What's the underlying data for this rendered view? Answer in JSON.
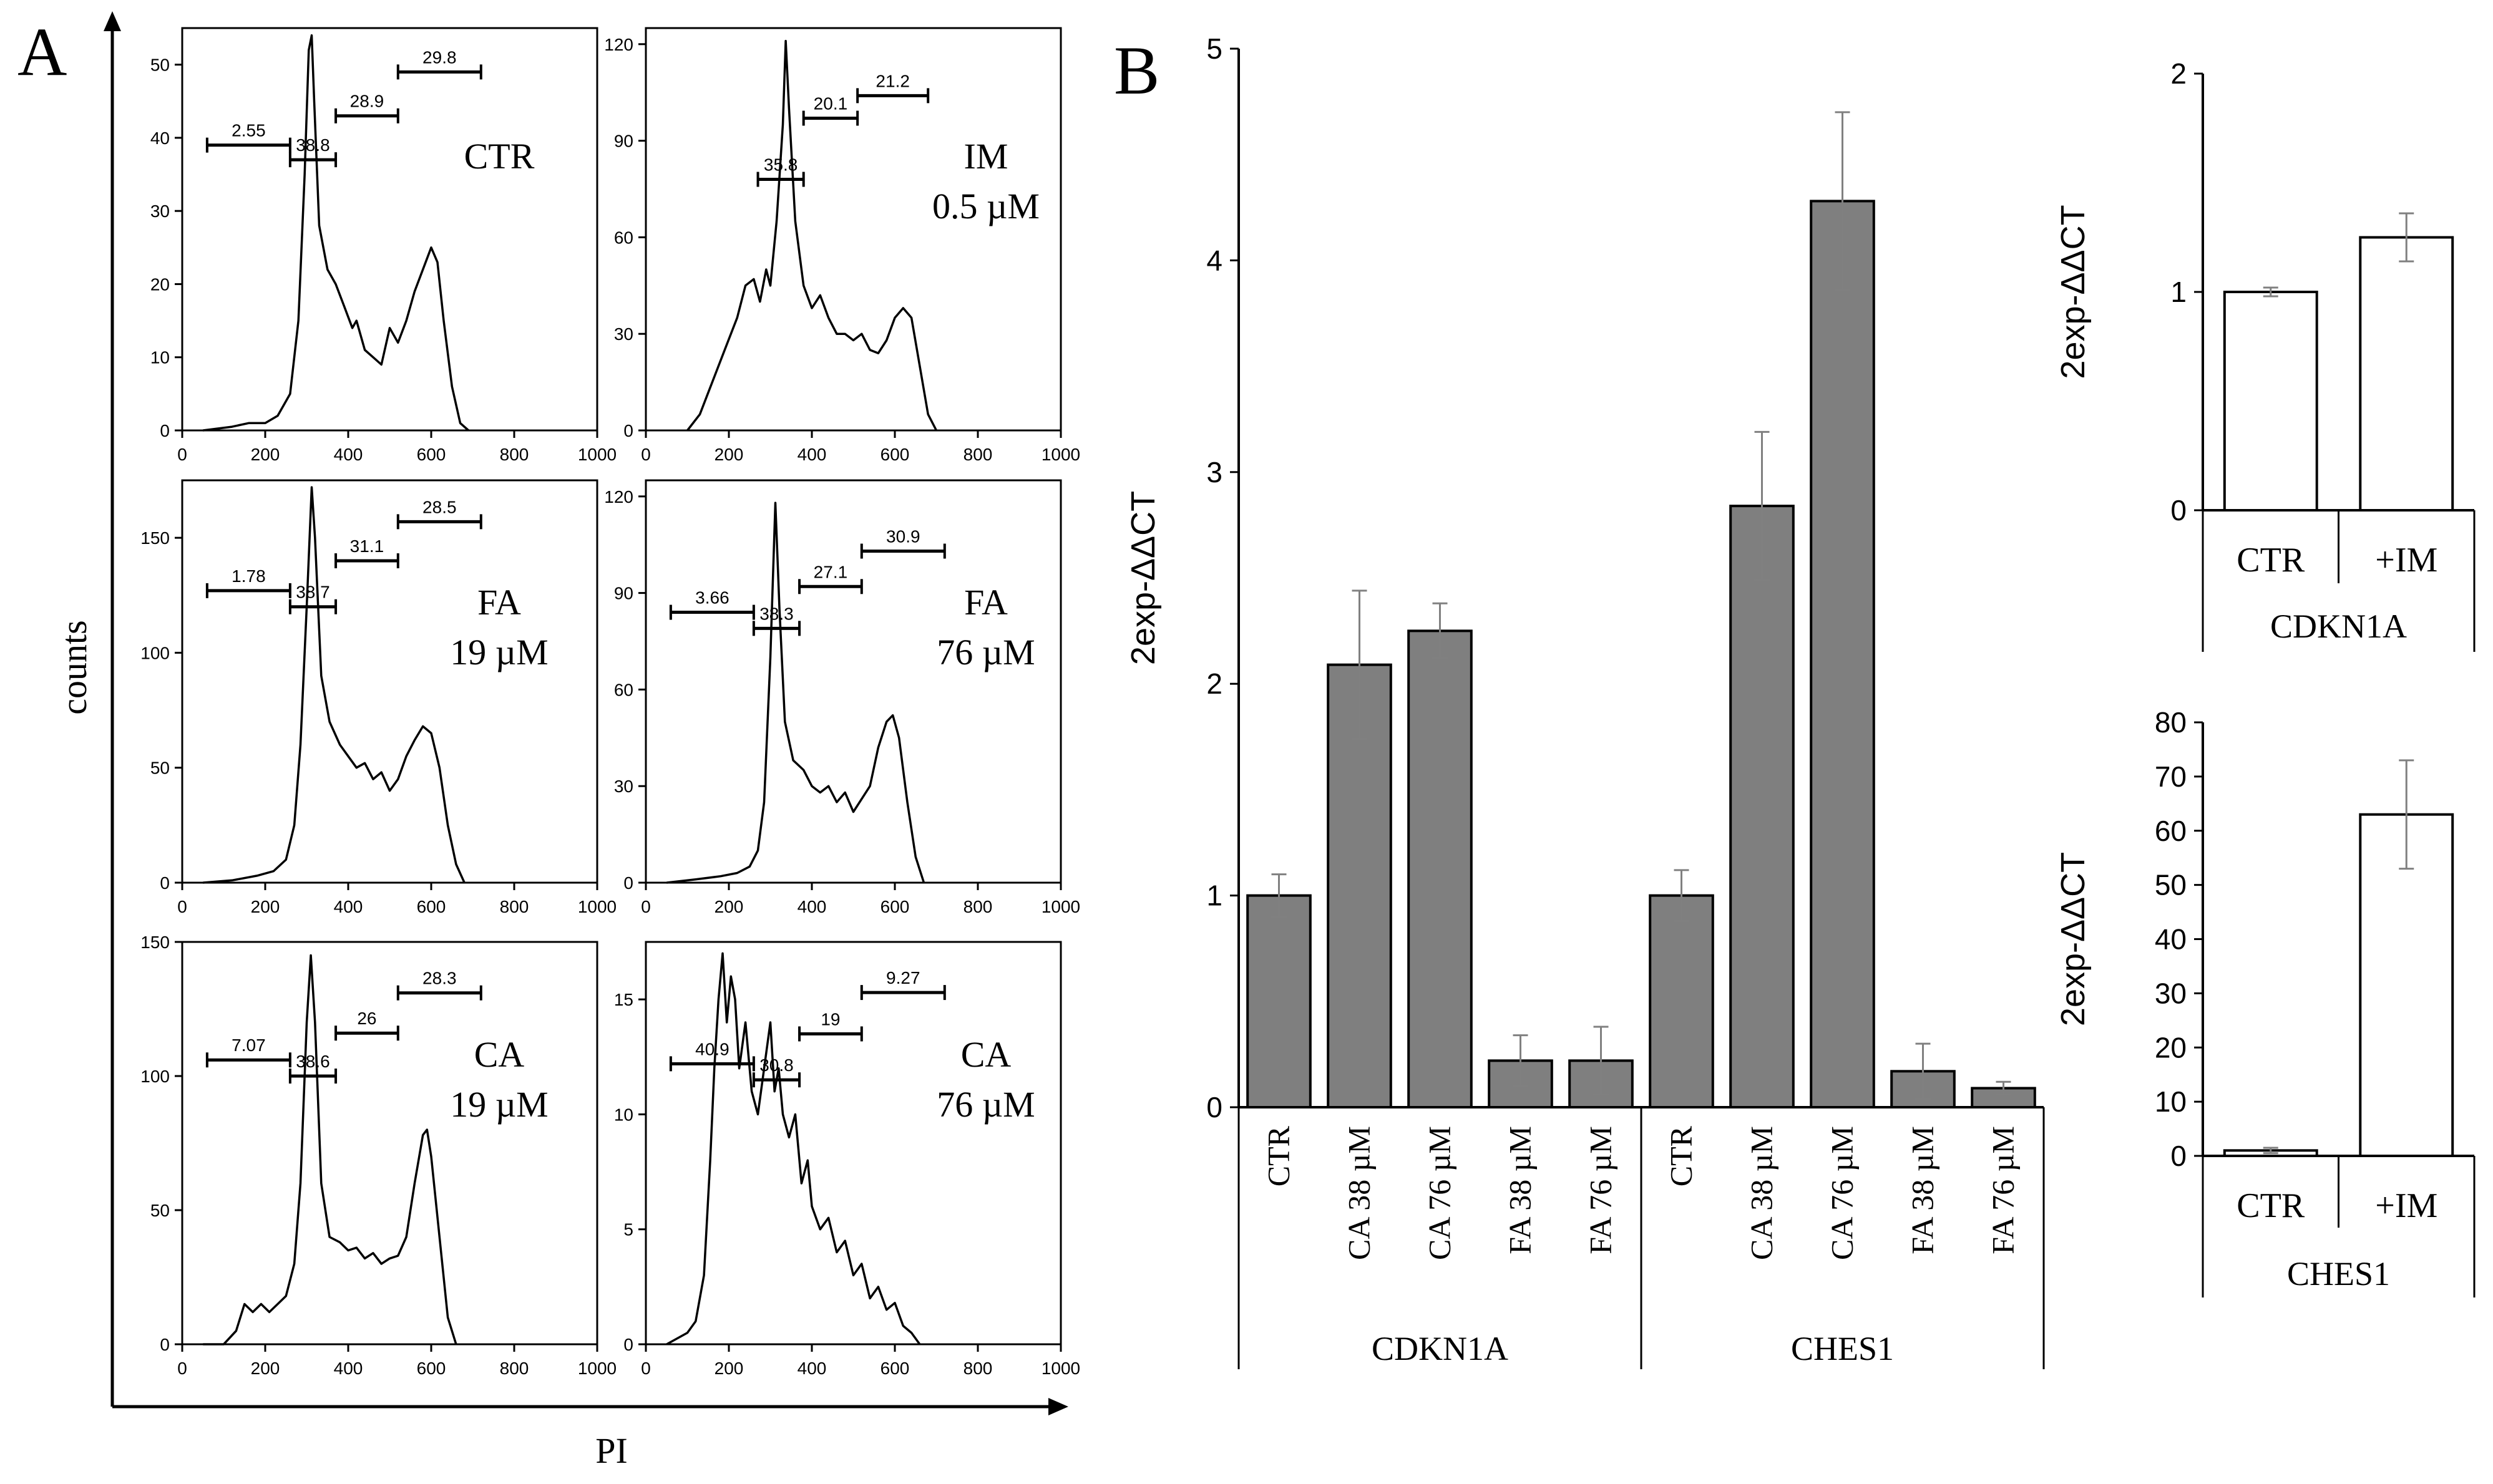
{
  "panel_labels": {
    "a": "A",
    "b": "B"
  },
  "histograms": {
    "shared_xlabel": "PI",
    "shared_ylabel": "counts",
    "x_ticks": [
      0,
      200,
      400,
      600,
      800,
      1000
    ]
  },
  "colors": {
    "bar_gray": "#7f7f7f",
    "bar_white": "#ffffff",
    "ink": "#000000",
    "error": "#808080"
  },
  "chart_data": [
    {
      "type": "histogram",
      "id": "h_ctr",
      "label_lines": [
        "CTR"
      ],
      "xlim": [
        0,
        1000
      ],
      "ylim": [
        0,
        55
      ],
      "y_ticks": [
        0,
        10,
        20,
        30,
        40,
        50
      ],
      "x_ticks": [
        0,
        200,
        400,
        600,
        800,
        1000
      ],
      "curve": [
        [
          50,
          0
        ],
        [
          120,
          0.5
        ],
        [
          160,
          1
        ],
        [
          200,
          1
        ],
        [
          230,
          2
        ],
        [
          260,
          5
        ],
        [
          280,
          15
        ],
        [
          295,
          35
        ],
        [
          305,
          52
        ],
        [
          312,
          54
        ],
        [
          318,
          45
        ],
        [
          330,
          28
        ],
        [
          350,
          22
        ],
        [
          370,
          20
        ],
        [
          390,
          17
        ],
        [
          410,
          14
        ],
        [
          420,
          15
        ],
        [
          440,
          11
        ],
        [
          460,
          10
        ],
        [
          480,
          9
        ],
        [
          500,
          14
        ],
        [
          520,
          12
        ],
        [
          540,
          15
        ],
        [
          560,
          19
        ],
        [
          580,
          22
        ],
        [
          600,
          25
        ],
        [
          615,
          23
        ],
        [
          630,
          15
        ],
        [
          650,
          6
        ],
        [
          670,
          1
        ],
        [
          690,
          0
        ]
      ],
      "gates": [
        {
          "label": "2.55",
          "from": 60,
          "to": 260,
          "y": 39
        },
        {
          "label": "38.8",
          "from": 260,
          "to": 370,
          "y": 37
        },
        {
          "label": "28.9",
          "from": 370,
          "to": 520,
          "y": 43
        },
        {
          "label": "29.8",
          "from": 520,
          "to": 720,
          "y": 49
        }
      ]
    },
    {
      "type": "histogram",
      "id": "h_im",
      "label_lines": [
        "IM",
        "0.5 µM"
      ],
      "xlim": [
        0,
        1000
      ],
      "ylim": [
        0,
        125
      ],
      "y_ticks": [
        0,
        30,
        60,
        90,
        120
      ],
      "x_ticks": [
        0,
        200,
        400,
        600,
        800,
        1000
      ],
      "curve": [
        [
          100,
          0
        ],
        [
          130,
          5
        ],
        [
          160,
          15
        ],
        [
          190,
          25
        ],
        [
          220,
          35
        ],
        [
          240,
          45
        ],
        [
          260,
          47
        ],
        [
          275,
          40
        ],
        [
          290,
          50
        ],
        [
          300,
          45
        ],
        [
          315,
          65
        ],
        [
          330,
          95
        ],
        [
          337,
          121
        ],
        [
          345,
          100
        ],
        [
          360,
          65
        ],
        [
          380,
          45
        ],
        [
          400,
          38
        ],
        [
          420,
          42
        ],
        [
          440,
          35
        ],
        [
          460,
          30
        ],
        [
          480,
          30
        ],
        [
          500,
          28
        ],
        [
          520,
          30
        ],
        [
          540,
          25
        ],
        [
          560,
          24
        ],
        [
          580,
          28
        ],
        [
          600,
          35
        ],
        [
          620,
          38
        ],
        [
          640,
          35
        ],
        [
          660,
          20
        ],
        [
          680,
          5
        ],
        [
          700,
          0
        ]
      ],
      "gates": [
        {
          "label": "35.8",
          "from": 270,
          "to": 380,
          "y": 78
        },
        {
          "label": "20.1",
          "from": 380,
          "to": 510,
          "y": 97
        },
        {
          "label": "21.2",
          "from": 510,
          "to": 680,
          "y": 104
        }
      ]
    },
    {
      "type": "histogram",
      "id": "h_fa19",
      "label_lines": [
        "FA",
        "19 µM"
      ],
      "xlim": [
        0,
        1000
      ],
      "ylim": [
        0,
        175
      ],
      "y_ticks": [
        0,
        50,
        100,
        150
      ],
      "x_ticks": [
        0,
        200,
        400,
        600,
        800,
        1000
      ],
      "curve": [
        [
          50,
          0
        ],
        [
          120,
          1
        ],
        [
          180,
          3
        ],
        [
          220,
          5
        ],
        [
          250,
          10
        ],
        [
          270,
          25
        ],
        [
          285,
          60
        ],
        [
          300,
          120
        ],
        [
          312,
          172
        ],
        [
          320,
          150
        ],
        [
          335,
          90
        ],
        [
          355,
          70
        ],
        [
          380,
          60
        ],
        [
          400,
          55
        ],
        [
          420,
          50
        ],
        [
          440,
          52
        ],
        [
          460,
          45
        ],
        [
          480,
          48
        ],
        [
          500,
          40
        ],
        [
          520,
          45
        ],
        [
          540,
          55
        ],
        [
          560,
          62
        ],
        [
          580,
          68
        ],
        [
          600,
          65
        ],
        [
          620,
          50
        ],
        [
          640,
          25
        ],
        [
          660,
          8
        ],
        [
          680,
          0
        ]
      ],
      "gates": [
        {
          "label": "1.78",
          "from": 60,
          "to": 260,
          "y": 127
        },
        {
          "label": "38.7",
          "from": 260,
          "to": 370,
          "y": 120
        },
        {
          "label": "31.1",
          "from": 370,
          "to": 520,
          "y": 140
        },
        {
          "label": "28.5",
          "from": 520,
          "to": 720,
          "y": 157
        }
      ]
    },
    {
      "type": "histogram",
      "id": "h_fa76",
      "label_lines": [
        "FA",
        "76 µM"
      ],
      "xlim": [
        0,
        1000
      ],
      "ylim": [
        0,
        125
      ],
      "y_ticks": [
        0,
        30,
        60,
        90,
        120
      ],
      "x_ticks": [
        0,
        200,
        400,
        600,
        800,
        1000
      ],
      "curve": [
        [
          50,
          0
        ],
        [
          120,
          1
        ],
        [
          180,
          2
        ],
        [
          220,
          3
        ],
        [
          250,
          5
        ],
        [
          270,
          10
        ],
        [
          285,
          25
        ],
        [
          300,
          70
        ],
        [
          312,
          118
        ],
        [
          322,
          85
        ],
        [
          335,
          50
        ],
        [
          355,
          38
        ],
        [
          380,
          35
        ],
        [
          400,
          30
        ],
        [
          420,
          28
        ],
        [
          440,
          30
        ],
        [
          460,
          25
        ],
        [
          480,
          28
        ],
        [
          500,
          22
        ],
        [
          520,
          26
        ],
        [
          540,
          30
        ],
        [
          560,
          42
        ],
        [
          580,
          50
        ],
        [
          595,
          52
        ],
        [
          610,
          45
        ],
        [
          630,
          25
        ],
        [
          650,
          8
        ],
        [
          670,
          0
        ]
      ],
      "gates": [
        {
          "label": "3.66",
          "from": 60,
          "to": 260,
          "y": 84
        },
        {
          "label": "38.3",
          "from": 260,
          "to": 370,
          "y": 79
        },
        {
          "label": "27.1",
          "from": 370,
          "to": 520,
          "y": 92
        },
        {
          "label": "30.9",
          "from": 520,
          "to": 720,
          "y": 103
        }
      ]
    },
    {
      "type": "histogram",
      "id": "h_ca19",
      "label_lines": [
        "CA",
        "19 µM"
      ],
      "xlim": [
        0,
        1000
      ],
      "ylim": [
        0,
        150
      ],
      "y_ticks": [
        0,
        50,
        100,
        150
      ],
      "x_ticks": [
        0,
        200,
        400,
        600,
        800,
        1000
      ],
      "curve": [
        [
          50,
          0
        ],
        [
          100,
          0
        ],
        [
          130,
          5
        ],
        [
          150,
          15
        ],
        [
          170,
          12
        ],
        [
          190,
          15
        ],
        [
          210,
          12
        ],
        [
          230,
          15
        ],
        [
          250,
          18
        ],
        [
          270,
          30
        ],
        [
          285,
          60
        ],
        [
          300,
          120
        ],
        [
          310,
          145
        ],
        [
          320,
          120
        ],
        [
          335,
          60
        ],
        [
          355,
          40
        ],
        [
          380,
          38
        ],
        [
          400,
          35
        ],
        [
          420,
          36
        ],
        [
          440,
          32
        ],
        [
          460,
          34
        ],
        [
          480,
          30
        ],
        [
          500,
          32
        ],
        [
          520,
          33
        ],
        [
          540,
          40
        ],
        [
          560,
          60
        ],
        [
          580,
          78
        ],
        [
          590,
          80
        ],
        [
          600,
          70
        ],
        [
          620,
          40
        ],
        [
          640,
          10
        ],
        [
          660,
          0
        ]
      ],
      "gates": [
        {
          "label": "7.07",
          "from": 60,
          "to": 260,
          "y": 106
        },
        {
          "label": "38.6",
          "from": 260,
          "to": 370,
          "y": 100
        },
        {
          "label": "26",
          "from": 370,
          "to": 520,
          "y": 116
        },
        {
          "label": "28.3",
          "from": 520,
          "to": 720,
          "y": 131
        }
      ]
    },
    {
      "type": "histogram",
      "id": "h_ca76",
      "label_lines": [
        "CA",
        "76 µM"
      ],
      "xlim": [
        0,
        1000
      ],
      "ylim": [
        0,
        17.5
      ],
      "y_ticks": [
        0,
        5,
        10,
        15
      ],
      "x_ticks": [
        0,
        200,
        400,
        600,
        800,
        1000
      ],
      "curve": [
        [
          50,
          0
        ],
        [
          100,
          0.5
        ],
        [
          120,
          1
        ],
        [
          140,
          3
        ],
        [
          155,
          8
        ],
        [
          165,
          12
        ],
        [
          175,
          15
        ],
        [
          185,
          17
        ],
        [
          195,
          14
        ],
        [
          205,
          16
        ],
        [
          215,
          15
        ],
        [
          225,
          12
        ],
        [
          240,
          14
        ],
        [
          255,
          11
        ],
        [
          270,
          10
        ],
        [
          285,
          12
        ],
        [
          300,
          14
        ],
        [
          310,
          11
        ],
        [
          320,
          12
        ],
        [
          330,
          10
        ],
        [
          345,
          9
        ],
        [
          360,
          10
        ],
        [
          375,
          7
        ],
        [
          390,
          8
        ],
        [
          400,
          6
        ],
        [
          420,
          5
        ],
        [
          440,
          5.5
        ],
        [
          460,
          4
        ],
        [
          480,
          4.5
        ],
        [
          500,
          3
        ],
        [
          520,
          3.5
        ],
        [
          540,
          2
        ],
        [
          560,
          2.5
        ],
        [
          580,
          1.5
        ],
        [
          600,
          1.8
        ],
        [
          620,
          0.8
        ],
        [
          640,
          0.5
        ],
        [
          660,
          0
        ]
      ],
      "gates": [
        {
          "label": "40.9",
          "from": 60,
          "to": 260,
          "y": 12.2
        },
        {
          "label": "30.8",
          "from": 260,
          "to": 370,
          "y": 11.5
        },
        {
          "label": "19",
          "from": 370,
          "to": 520,
          "y": 13.5
        },
        {
          "label": "9.27",
          "from": 520,
          "to": 720,
          "y": 15.3
        }
      ]
    },
    {
      "type": "bar",
      "id": "b_main",
      "ylabel": "2exp-ΔΔCT",
      "ylim": [
        0,
        5
      ],
      "y_ticks": [
        0,
        1,
        2,
        3,
        4,
        5
      ],
      "categories": [
        "CTR",
        "CA 38 µM",
        "CA 76 µM",
        "FA 38 µM",
        "FA 76 µM",
        "CTR",
        "CA 38 µM",
        "CA 76 µM",
        "FA 38 µM",
        "FA 76 µM"
      ],
      "values": [
        1.0,
        2.09,
        2.25,
        0.22,
        0.22,
        1.0,
        2.84,
        4.28,
        0.17,
        0.09
      ],
      "errors": [
        0.1,
        0.35,
        0.13,
        0.12,
        0.16,
        0.12,
        0.35,
        0.42,
        0.13,
        0.03
      ],
      "groups": [
        {
          "label": "CDKN1A",
          "size": 5
        },
        {
          "label": "CHES1",
          "size": 5
        }
      ]
    },
    {
      "type": "bar",
      "id": "b_cdkn",
      "ylabel": "2exp-ΔΔCT",
      "ylim": [
        0,
        2
      ],
      "y_ticks": [
        0,
        1,
        2
      ],
      "categories": [
        "CTR",
        "+IM"
      ],
      "values": [
        1.0,
        1.25
      ],
      "errors": [
        0.02,
        0.11
      ],
      "group_label": "CDKN1A"
    },
    {
      "type": "bar",
      "id": "b_ches",
      "ylabel": "2exp-ΔΔCT",
      "ylim": [
        0,
        80
      ],
      "y_ticks": [
        0,
        10,
        20,
        30,
        40,
        50,
        60,
        70,
        80
      ],
      "categories": [
        "CTR",
        "+IM"
      ],
      "values": [
        1.0,
        63
      ],
      "errors": [
        0.5,
        10
      ],
      "group_label": "CHES1"
    }
  ]
}
